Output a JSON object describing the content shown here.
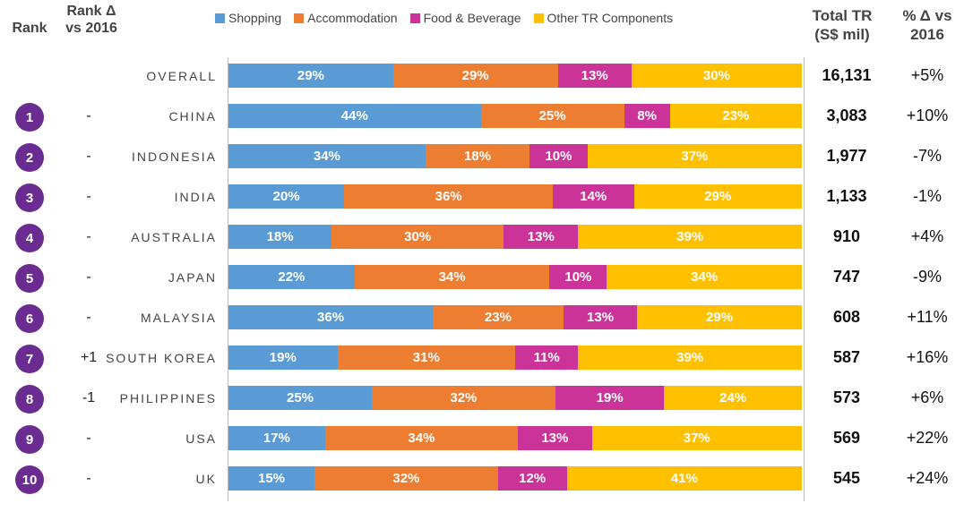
{
  "headers": {
    "rank": "Rank",
    "rank_delta": [
      "Rank Δ",
      "vs 2016"
    ],
    "total_tr": [
      "Total TR",
      "(S$ mil)"
    ],
    "pct_delta": [
      "% Δ vs",
      "2016"
    ]
  },
  "chart_data": {
    "type": "bar",
    "stacked": true,
    "orientation": "horizontal",
    "percent_stacked": true,
    "legend_position": "top",
    "categories": [
      "OVERALL",
      "CHINA",
      "INDONESIA",
      "INDIA",
      "AUSTRALIA",
      "JAPAN",
      "MALAYSIA",
      "SOUTH KOREA",
      "PHILIPPINES",
      "USA",
      "UK"
    ],
    "series": [
      {
        "name": "Shopping",
        "color": "#5b9bd5",
        "values": [
          29,
          44,
          34,
          20,
          18,
          22,
          36,
          19,
          25,
          17,
          15
        ]
      },
      {
        "name": "Accommodation",
        "color": "#ed7d31",
        "values": [
          29,
          25,
          18,
          36,
          30,
          34,
          23,
          31,
          32,
          34,
          32
        ]
      },
      {
        "name": "Food & Beverage",
        "color": "#cc3399",
        "values": [
          13,
          8,
          10,
          14,
          13,
          10,
          13,
          11,
          19,
          13,
          12
        ]
      },
      {
        "name": "Other TR Components",
        "color": "#ffc000",
        "values": [
          30,
          23,
          37,
          29,
          39,
          34,
          29,
          39,
          24,
          37,
          41
        ]
      }
    ],
    "rows": [
      {
        "rank": "",
        "rank_delta": "",
        "country": "OVERALL",
        "total": "16,131",
        "pct": "+5%"
      },
      {
        "rank": "1",
        "rank_delta": "-",
        "country": "CHINA",
        "total": "3,083",
        "pct": "+10%"
      },
      {
        "rank": "2",
        "rank_delta": "-",
        "country": "INDONESIA",
        "total": "1,977",
        "pct": "-7%"
      },
      {
        "rank": "3",
        "rank_delta": "-",
        "country": "INDIA",
        "total": "1,133",
        "pct": "-1%"
      },
      {
        "rank": "4",
        "rank_delta": "-",
        "country": "AUSTRALIA",
        "total": "910",
        "pct": "+4%"
      },
      {
        "rank": "5",
        "rank_delta": "-",
        "country": "JAPAN",
        "total": "747",
        "pct": "-9%"
      },
      {
        "rank": "6",
        "rank_delta": "-",
        "country": "MALAYSIA",
        "total": "608",
        "pct": "+11%"
      },
      {
        "rank": "7",
        "rank_delta": "+1",
        "country": "SOUTH KOREA",
        "total": "587",
        "pct": "+16%"
      },
      {
        "rank": "8",
        "rank_delta": "-1",
        "country": "PHILIPPINES",
        "total": "573",
        "pct": "+6%"
      },
      {
        "rank": "9",
        "rank_delta": "-",
        "country": "USA",
        "total": "569",
        "pct": "+22%"
      },
      {
        "rank": "10",
        "rank_delta": "-",
        "country": "UK",
        "total": "545",
        "pct": "+24%"
      }
    ]
  }
}
